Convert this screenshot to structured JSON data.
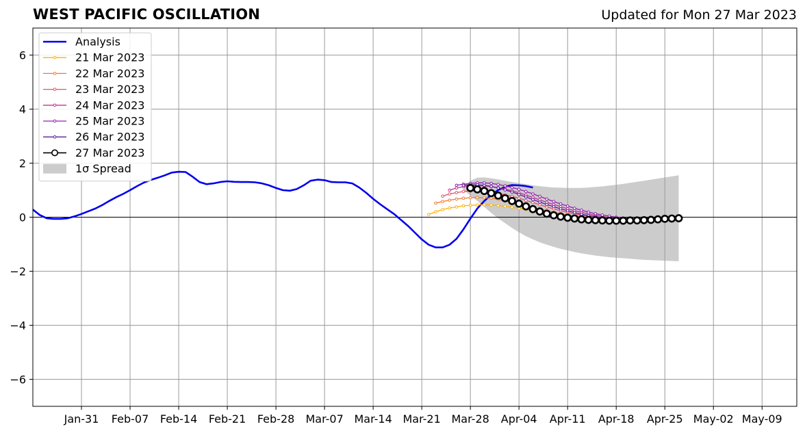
{
  "header": {
    "title": "WEST PACIFIC OSCILLATION",
    "updated": "Updated for Mon 27 Mar 2023"
  },
  "chart_data": {
    "type": "line",
    "title": "WEST PACIFIC OSCILLATION",
    "xlabel": "",
    "ylabel": "",
    "x_start": "2023-01-24",
    "x_end": "2023-05-14",
    "ylim": [
      -7,
      7
    ],
    "yticks": [
      -6,
      -4,
      -2,
      0,
      2,
      4,
      6
    ],
    "ytick_labels": [
      "−6",
      "−4",
      "−2",
      "0",
      "2",
      "4",
      "6"
    ],
    "xticks": [
      "2023-01-31",
      "2023-02-07",
      "2023-02-14",
      "2023-02-21",
      "2023-02-28",
      "2023-03-07",
      "2023-03-14",
      "2023-03-21",
      "2023-03-28",
      "2023-04-04",
      "2023-04-11",
      "2023-04-18",
      "2023-04-25",
      "2023-05-02",
      "2023-05-09"
    ],
    "xtick_labels": [
      "Jan-31",
      "Feb-07",
      "Feb-14",
      "Feb-21",
      "Feb-28",
      "Mar-07",
      "Mar-14",
      "Mar-21",
      "Mar-28",
      "Apr-04",
      "Apr-11",
      "Apr-18",
      "Apr-25",
      "May-02",
      "May-09"
    ],
    "grid": true,
    "legend_placement": "upper-left",
    "analysis": {
      "name": "Analysis",
      "color": "#0000ee",
      "x_start": "2023-01-24",
      "values": [
        0.28,
        0.08,
        -0.04,
        -0.06,
        -0.06,
        -0.04,
        0.03,
        0.12,
        0.22,
        0.32,
        0.45,
        0.6,
        0.74,
        0.86,
        1.0,
        1.15,
        1.28,
        1.38,
        1.46,
        1.55,
        1.65,
        1.68,
        1.67,
        1.5,
        1.3,
        1.22,
        1.25,
        1.3,
        1.33,
        1.31,
        1.3,
        1.3,
        1.29,
        1.25,
        1.18,
        1.08,
        1.0,
        0.98,
        1.04,
        1.18,
        1.35,
        1.39,
        1.37,
        1.3,
        1.29,
        1.29,
        1.25,
        1.1,
        0.9,
        0.68,
        0.48,
        0.3,
        0.12,
        -0.1,
        -0.32,
        -0.57,
        -0.82,
        -1.02,
        -1.12,
        -1.12,
        -1.02,
        -0.8,
        -0.45,
        -0.05,
        0.32,
        0.6,
        0.83,
        1.0,
        1.13,
        1.19,
        1.18,
        1.15,
        1.1
      ]
    },
    "spread": {
      "name": "1σ Spread",
      "color": "#cccccc",
      "x_start": "2023-03-27",
      "upper": [
        1.1,
        1.35,
        1.46,
        1.47,
        1.44,
        1.4,
        1.35,
        1.3,
        1.26,
        1.22,
        1.18,
        1.15,
        1.12,
        1.1,
        1.09,
        1.08,
        1.08,
        1.08,
        1.1,
        1.12,
        1.14,
        1.17,
        1.2,
        1.23,
        1.27,
        1.31,
        1.35,
        1.39,
        1.43,
        1.47,
        1.51,
        1.55
      ],
      "lower": [
        1.0,
        0.8,
        0.6,
        0.38,
        0.16,
        -0.04,
        -0.22,
        -0.4,
        -0.56,
        -0.7,
        -0.82,
        -0.93,
        -1.02,
        -1.1,
        -1.17,
        -1.23,
        -1.29,
        -1.34,
        -1.38,
        -1.42,
        -1.45,
        -1.48,
        -1.5,
        -1.52,
        -1.54,
        -1.56,
        -1.58,
        -1.59,
        -1.6,
        -1.61,
        -1.62,
        -1.63
      ]
    },
    "forecasts": [
      {
        "name": "21 Mar 2023",
        "color": "#ffb000",
        "x_start": "2023-03-22",
        "values": [
          0.1,
          0.2,
          0.28,
          0.34,
          0.38,
          0.42,
          0.44,
          0.45,
          0.46,
          0.45,
          0.43,
          0.4,
          0.37,
          0.33,
          0.29,
          0.25,
          0.2,
          0.15,
          0.1,
          0.06,
          0.02,
          -0.01,
          -0.04,
          -0.06,
          -0.08,
          -0.09,
          -0.1,
          -0.1,
          -0.1,
          -0.1,
          -0.1,
          -0.09,
          -0.08,
          -0.07
        ]
      },
      {
        "name": "22 Mar 2023",
        "color": "#f07830",
        "x_start": "2023-03-23",
        "values": [
          0.52,
          0.58,
          0.63,
          0.67,
          0.7,
          0.72,
          0.73,
          0.72,
          0.7,
          0.66,
          0.6,
          0.54,
          0.48,
          0.42,
          0.36,
          0.3,
          0.24,
          0.18,
          0.13,
          0.08,
          0.04,
          0.0,
          -0.03,
          -0.06,
          -0.08,
          -0.09,
          -0.1,
          -0.1,
          -0.1,
          -0.1,
          -0.09,
          -0.08,
          -0.07
        ]
      },
      {
        "name": "23 Mar 2023",
        "color": "#e0506a",
        "x_start": "2023-03-24",
        "values": [
          0.78,
          0.86,
          0.91,
          0.95,
          0.97,
          0.97,
          0.95,
          0.92,
          0.88,
          0.83,
          0.77,
          0.7,
          0.62,
          0.54,
          0.46,
          0.38,
          0.31,
          0.24,
          0.18,
          0.12,
          0.07,
          0.03,
          -0.01,
          -0.04,
          -0.06,
          -0.08,
          -0.09,
          -0.1,
          -0.1,
          -0.09,
          -0.08,
          -0.07
        ]
      },
      {
        "name": "24 Mar 2023",
        "color": "#c03090",
        "x_start": "2023-03-25",
        "values": [
          1.0,
          1.08,
          1.13,
          1.16,
          1.17,
          1.16,
          1.13,
          1.09,
          1.04,
          0.98,
          0.9,
          0.82,
          0.73,
          0.64,
          0.55,
          0.47,
          0.39,
          0.31,
          0.24,
          0.18,
          0.12,
          0.07,
          0.03,
          -0.01,
          -0.04,
          -0.06,
          -0.08,
          -0.09,
          -0.09,
          -0.09,
          -0.08
        ]
      },
      {
        "name": "25 Mar 2023",
        "color": "#9020b0",
        "x_start": "2023-03-26",
        "values": [
          1.18,
          1.22,
          1.25,
          1.27,
          1.27,
          1.25,
          1.21,
          1.16,
          1.1,
          1.03,
          0.95,
          0.86,
          0.77,
          0.67,
          0.58,
          0.49,
          0.41,
          0.33,
          0.26,
          0.19,
          0.13,
          0.08,
          0.04,
          0.0,
          -0.03,
          -0.05,
          -0.07,
          -0.08,
          -0.08,
          -0.08
        ]
      },
      {
        "name": "26 Mar 2023",
        "color": "#5a1aa0",
        "x_start": "2023-03-27",
        "values": [
          1.18,
          1.2,
          1.2,
          1.18,
          1.14,
          1.08,
          1.01,
          0.93,
          0.84,
          0.75,
          0.65,
          0.56,
          0.47,
          0.39,
          0.31,
          0.24,
          0.17,
          0.11,
          0.06,
          0.02,
          -0.02,
          -0.05,
          -0.07,
          -0.08,
          -0.09,
          -0.09,
          -0.09,
          -0.08,
          -0.07
        ]
      },
      {
        "name": "27 Mar 2023",
        "color": "#000000",
        "x_start": "2023-03-28",
        "values": [
          1.08,
          1.03,
          0.97,
          0.89,
          0.8,
          0.7,
          0.6,
          0.5,
          0.4,
          0.3,
          0.21,
          0.13,
          0.07,
          0.02,
          -0.02,
          -0.05,
          -0.08,
          -0.1,
          -0.11,
          -0.12,
          -0.13,
          -0.13,
          -0.13,
          -0.12,
          -0.12,
          -0.11,
          -0.1,
          -0.08,
          -0.06,
          -0.05,
          -0.04
        ]
      }
    ]
  }
}
